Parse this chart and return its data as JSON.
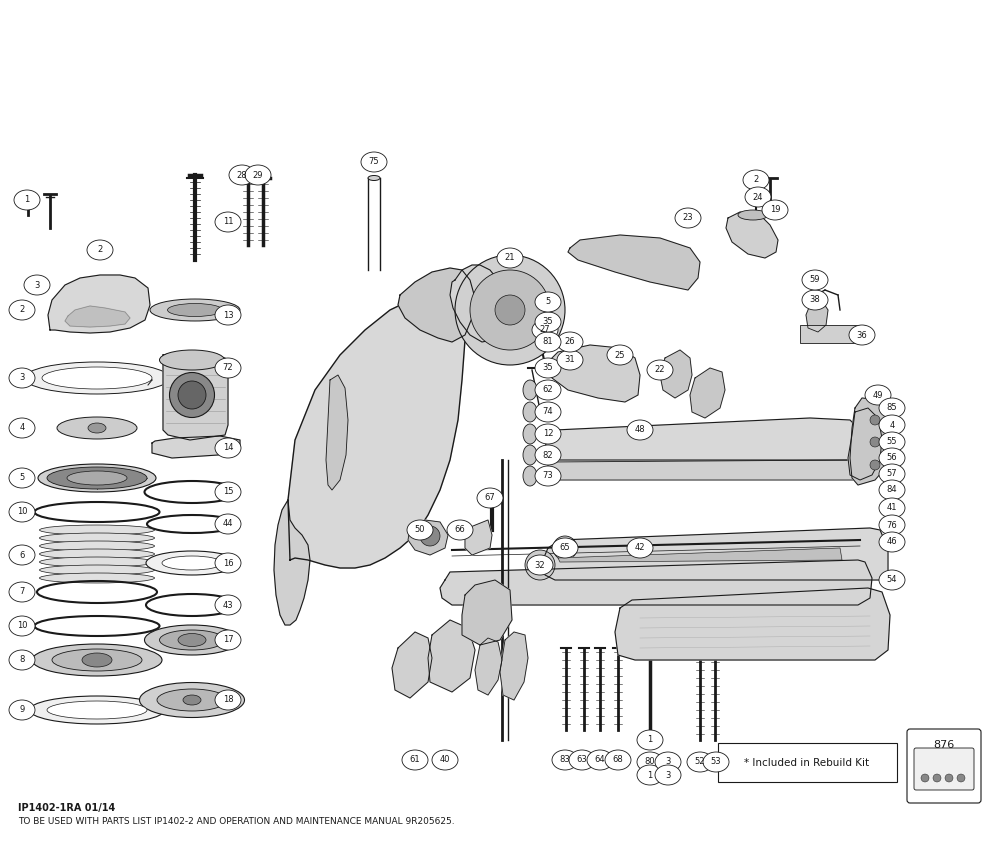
{
  "background_color": "#ffffff",
  "diagram_color": "#1a1a1a",
  "fig_width": 10.0,
  "fig_height": 8.52,
  "footer_line1": "IP1402-1RA 01/14",
  "footer_line2": "TO BE USED WITH PARTS LIST IP1402-2 AND OPERATION AND MAINTENANCE MANUAL 9R205625.",
  "rebuild_kit_text": "* Included in Rebuild Kit",
  "rebuild_kit_number": "876"
}
